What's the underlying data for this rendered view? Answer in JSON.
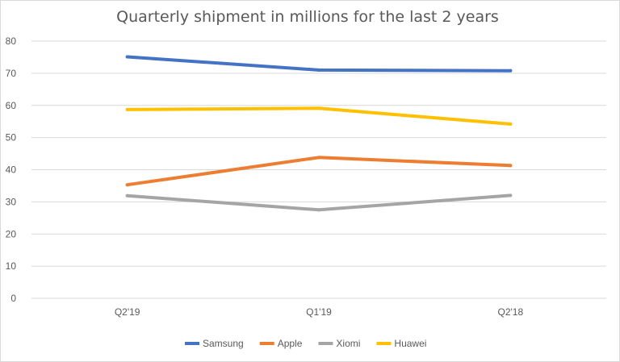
{
  "chart_data": {
    "type": "line",
    "title": "Quarterly shipment in millions for the last 2 years",
    "xlabel": "",
    "ylabel": "",
    "categories": [
      "Q2'19",
      "Q1'19",
      "Q2'18"
    ],
    "ylim": [
      0,
      80
    ],
    "yticks": [
      0,
      10,
      20,
      30,
      40,
      50,
      60,
      70,
      80
    ],
    "grid": true,
    "legend_position": "bottom",
    "series": [
      {
        "name": "Samsung",
        "color": "#4472C4",
        "values": [
          75.1,
          71.0,
          70.8
        ]
      },
      {
        "name": "Apple",
        "color": "#ED7D31",
        "values": [
          35.3,
          43.8,
          41.3
        ]
      },
      {
        "name": "Xiomi",
        "color": "#A5A5A5",
        "values": [
          31.9,
          27.5,
          32.0
        ]
      },
      {
        "name": "Huawei",
        "color": "#FFC000",
        "values": [
          58.7,
          59.1,
          54.2
        ]
      }
    ]
  }
}
